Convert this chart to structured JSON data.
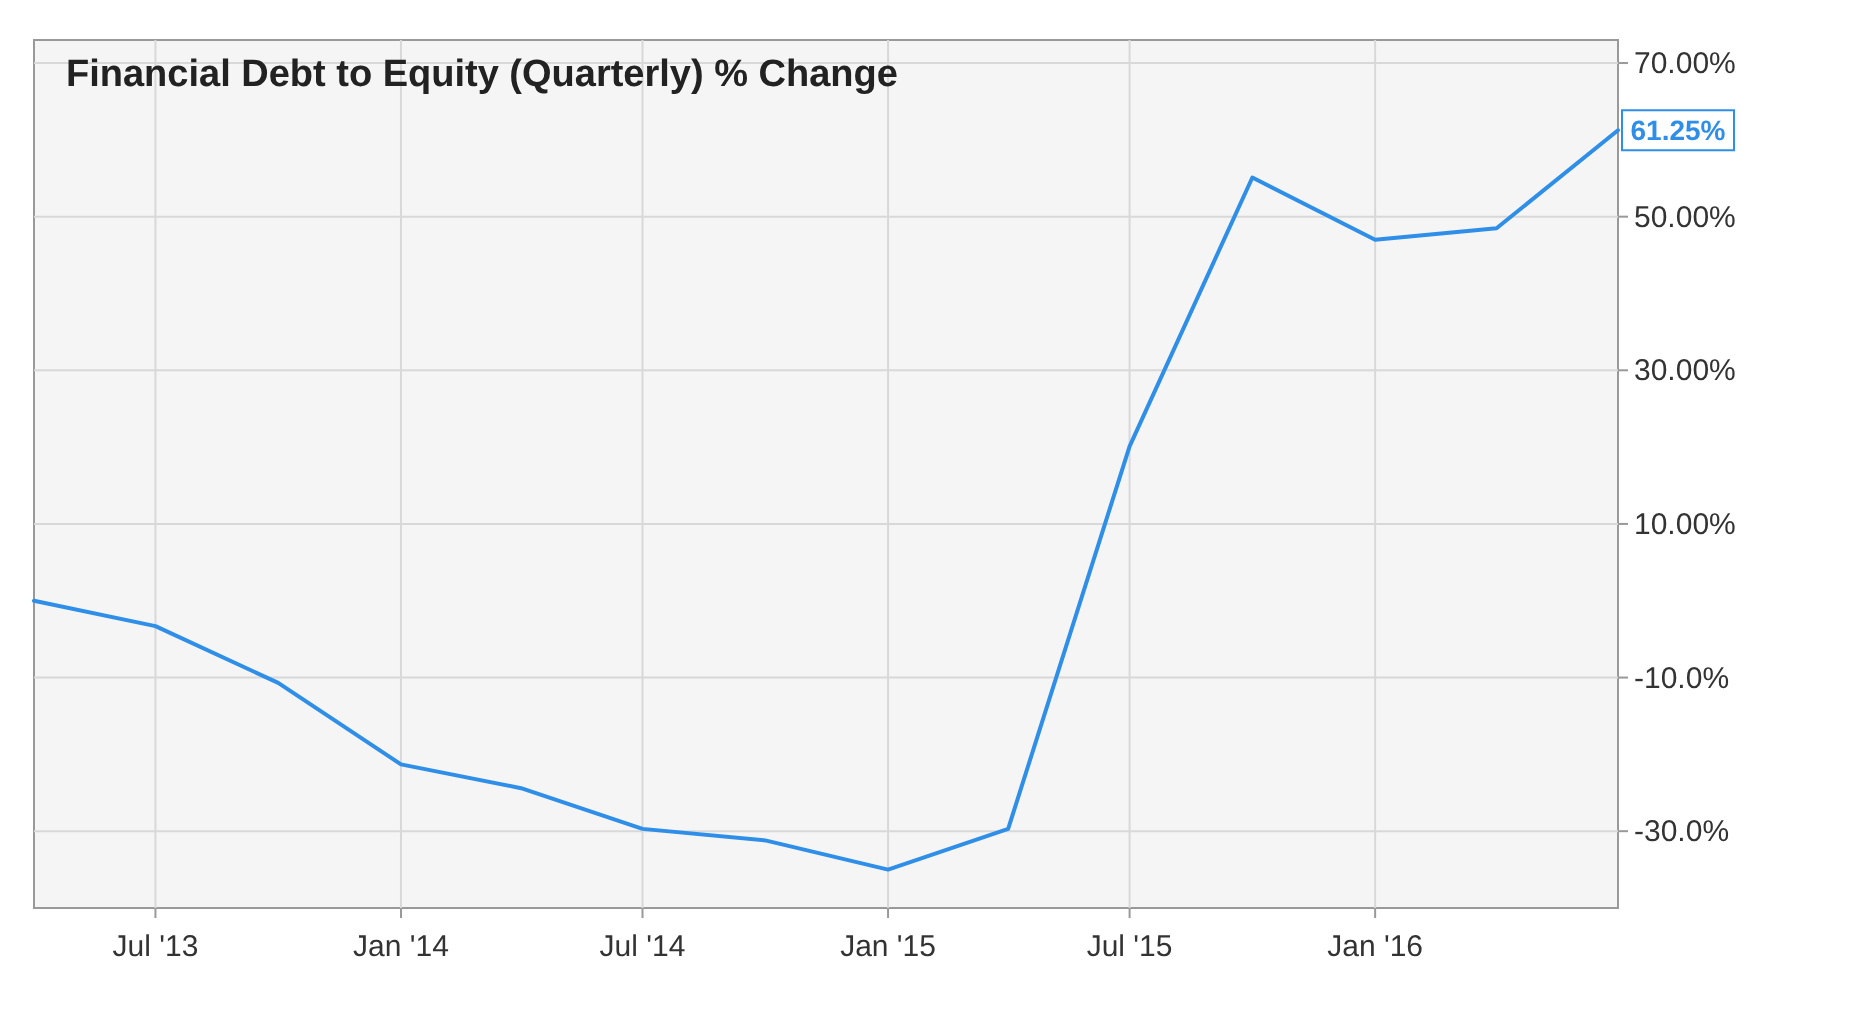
{
  "chart_data": {
    "type": "line",
    "title": "Financial Debt to Equity (Quarterly) % Change",
    "x": [
      "2013-04-01",
      "2013-07-01",
      "2013-10-01",
      "2014-01-01",
      "2014-04-01",
      "2014-07-01",
      "2014-10-01",
      "2015-01-01",
      "2015-04-01",
      "2015-07-01",
      "2015-10-01",
      "2016-01-01",
      "2016-04-01",
      "2016-07-01"
    ],
    "series": [
      {
        "color": "#2f8fe8",
        "values": [
          0.0,
          -3.3,
          -10.7,
          -21.3,
          -24.4,
          -29.7,
          -31.2,
          -35.0,
          -29.7,
          20.1,
          55.1,
          47.0,
          48.5,
          61.25
        ],
        "value_labels": [
          null,
          null,
          null,
          null,
          null,
          null,
          null,
          null,
          null,
          null,
          null,
          null,
          null,
          "61.25%"
        ]
      }
    ],
    "xlim": [
      "2013-04-01",
      "2016-07-01"
    ],
    "xticks": [
      {
        "value": "2013-07-01",
        "label": "Jul '13"
      },
      {
        "value": "2014-01-01",
        "label": "Jan '14"
      },
      {
        "value": "2014-07-01",
        "label": "Jul '14"
      },
      {
        "value": "2015-01-01",
        "label": "Jan '15"
      },
      {
        "value": "2015-07-01",
        "label": "Jul '15"
      },
      {
        "value": "2016-01-01",
        "label": "Jan '16"
      }
    ],
    "ylim": [
      -40,
      73
    ],
    "yticks": [
      {
        "value": -30,
        "label": "-30.0%"
      },
      {
        "value": -10,
        "label": "-10.0%"
      },
      {
        "value": 10,
        "label": "10.00%"
      },
      {
        "value": 30,
        "label": "30.00%"
      },
      {
        "value": 50,
        "label": "50.00%"
      },
      {
        "value": 70,
        "label": "70.00%"
      }
    ],
    "grid": true,
    "marker": "none",
    "line_style": "solid"
  }
}
